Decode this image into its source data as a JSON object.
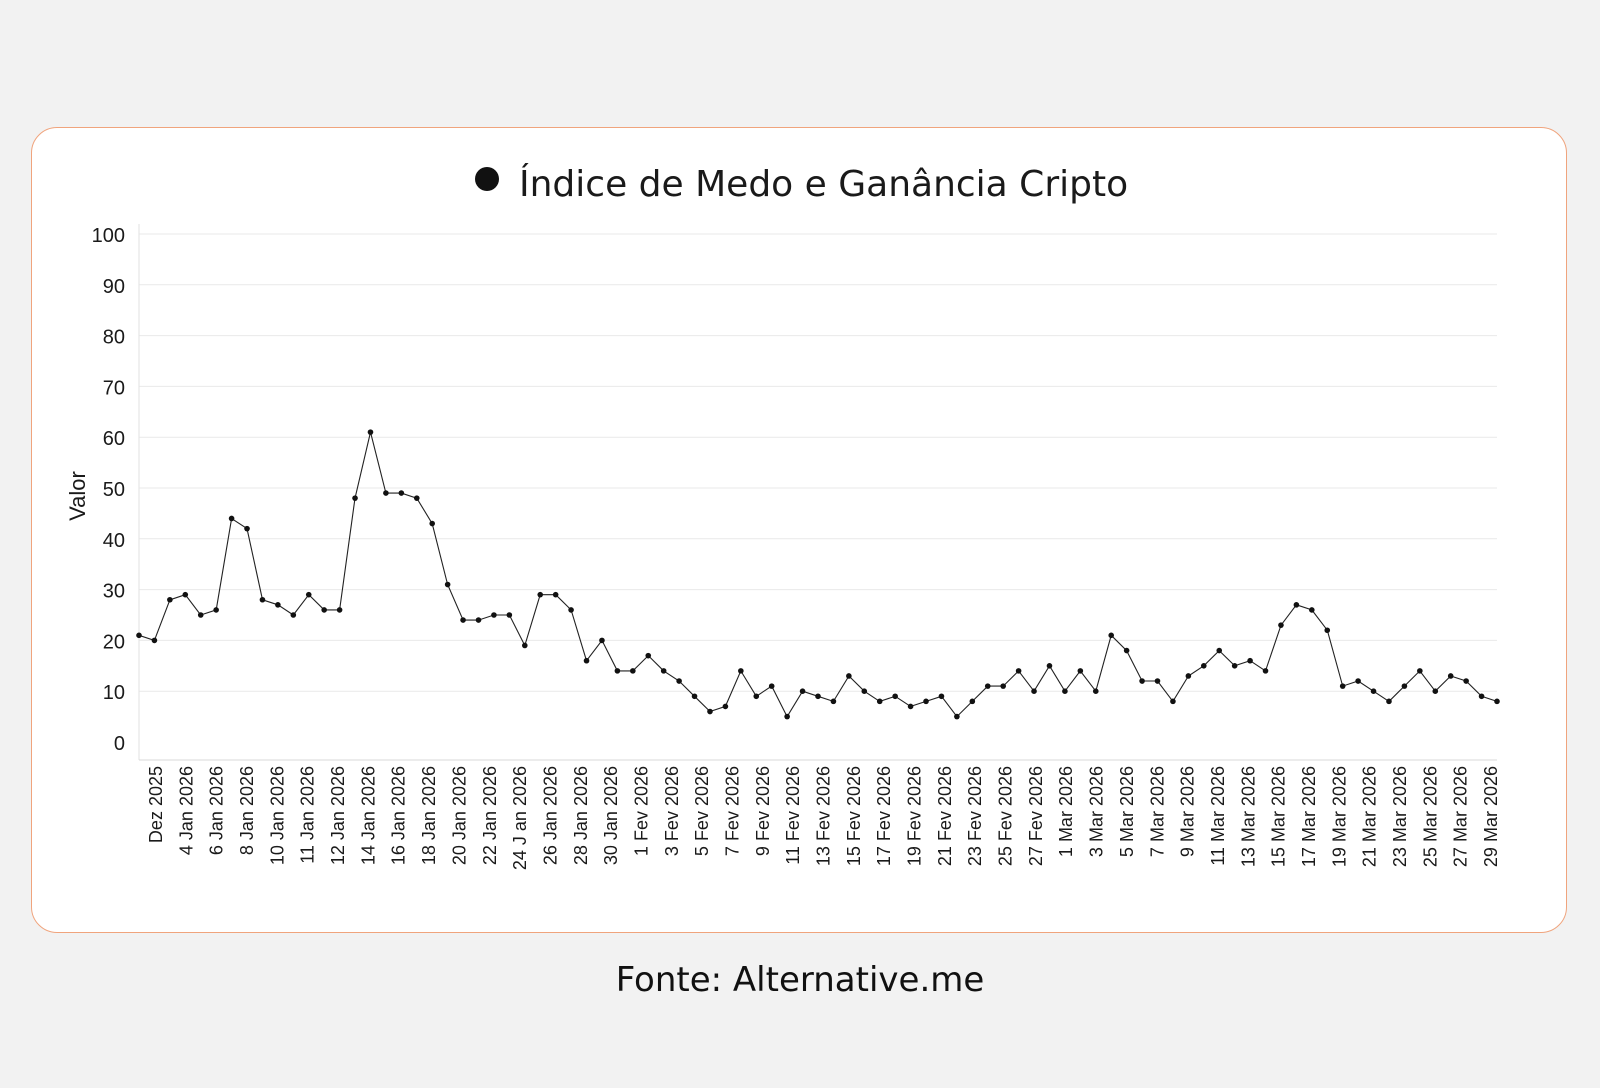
{
  "colors": {
    "background": "#f2f2f2",
    "card_border": "#f0a47d",
    "line": "#222222",
    "marker": "#111111",
    "grid": "#e9e9e9"
  },
  "source": "Fonte: Alternative.me",
  "chart_data": {
    "type": "line",
    "title": "Índice de Medo e Ganância Cripto",
    "ylabel": "Valor",
    "xlabel": "",
    "ylim": [
      0,
      100
    ],
    "y_ticks": [
      "0",
      "10",
      "20",
      "30",
      "40",
      "50",
      "60",
      "70",
      "80",
      "90",
      "100"
    ],
    "grid": "horizontal",
    "legend": "top-center",
    "x_tick_labels": [
      "Dez 2025",
      "4 Jan 2026",
      "6 Jan 2026",
      "8 Jan 2026",
      "10 Jan 2026",
      "11 Jan 2026",
      "12 Jan 2026",
      "14 Jan 2026",
      "16 Jan 2026",
      "18 Jan 2026",
      "20 Jan 2026",
      "22 Jan 2026",
      "24 J an 2026",
      "26 Jan 2026",
      "28 Jan 2026",
      "30 Jan 2026",
      "1 Fev 2026",
      "3 Fev 2026",
      "5 Fev 2026",
      "7 Fev 2026",
      "9 Fev 2026",
      "11 Fev 2026",
      "13 Fev 2026",
      "15 Fev 2026",
      "17 Fev 2026",
      "19 Fev 2026",
      "21 Fev 2026",
      "23 Fev 2026",
      "25 Fev 2026",
      "27 Fev 2026",
      "1 Mar 2026",
      "3 Mar 2026",
      "5 Mar 2026",
      "7 Mar 2026",
      "9 Mar 2026",
      "11 Mar 2026",
      "13 Mar 2026",
      "15 Mar 2026",
      "17 Mar 2026",
      "19 Mar 2026",
      "21 Mar 2026",
      "23 Mar 2026",
      "25 Mar 2026",
      "27 Mar 2026",
      "29 Mar 2026"
    ],
    "series": [
      {
        "values": [
          21,
          20,
          28,
          29,
          25,
          26,
          44,
          42,
          28,
          27,
          25,
          29,
          26,
          26,
          48,
          61,
          49,
          49,
          48,
          43,
          31,
          24,
          24,
          25,
          25,
          19,
          29,
          29,
          26,
          16,
          20,
          14,
          14,
          17,
          14,
          12,
          9,
          6,
          7,
          14,
          9,
          11,
          5,
          10,
          9,
          8,
          13,
          10,
          8,
          9,
          7,
          8,
          9,
          5,
          8,
          11,
          11,
          14,
          10,
          15,
          10,
          14,
          10,
          21,
          18,
          12,
          12,
          8,
          13,
          15,
          18,
          15,
          16,
          14,
          23,
          27,
          26,
          22,
          11,
          12,
          10,
          8,
          11,
          14,
          10,
          13,
          12,
          9,
          8
        ]
      }
    ]
  }
}
